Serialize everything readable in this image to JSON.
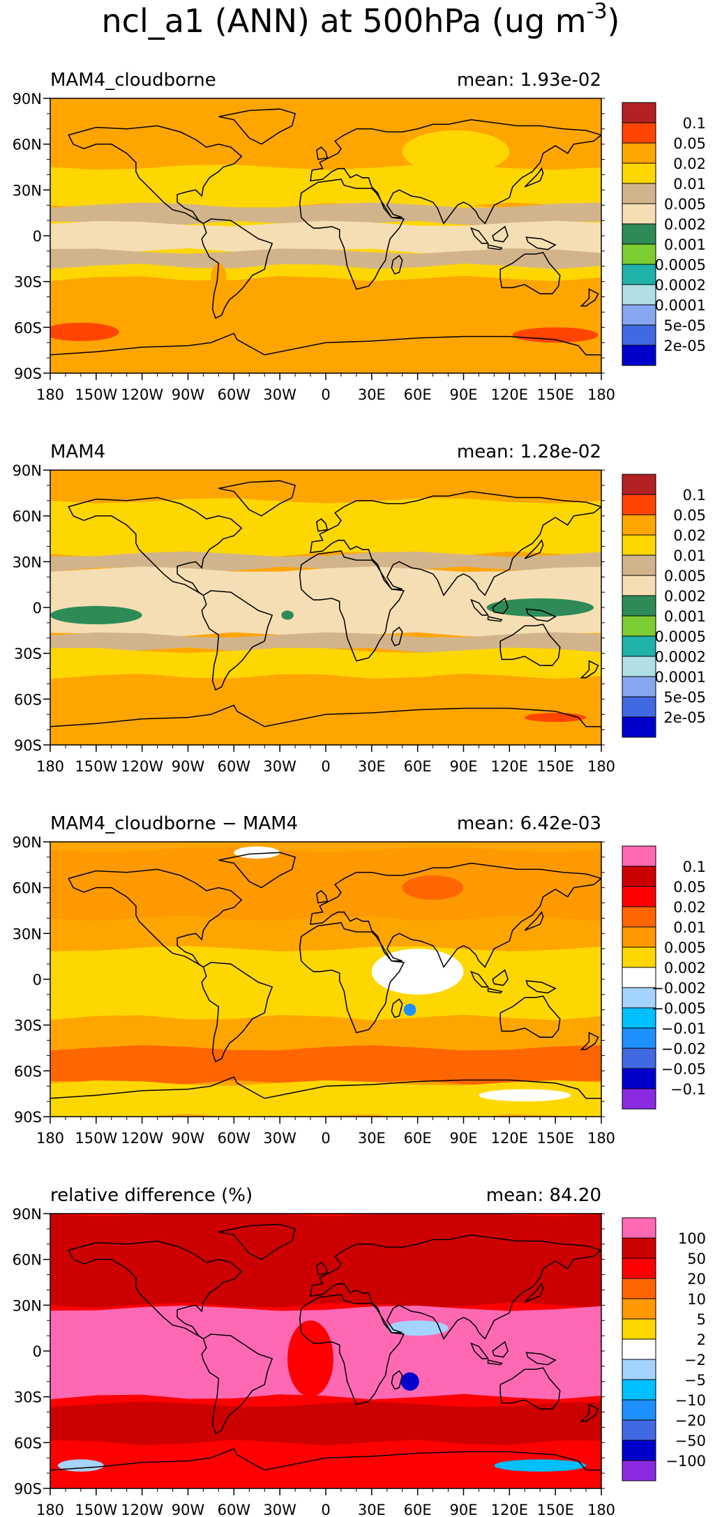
{
  "title": "ncl_a1 (ANN) at 500hPa (ug m",
  "title_sup": "-3",
  "title_close": ")",
  "lat_labels": [
    "90N",
    "60N",
    "30N",
    "0",
    "30S",
    "60S",
    "90S"
  ],
  "lon_labels": [
    "180",
    "150W",
    "120W",
    "90W",
    "60W",
    "30W",
    "0",
    "30E",
    "60E",
    "90E",
    "120E",
    "150E",
    "180"
  ],
  "panels": [
    {
      "id": "mam4-cloudborne",
      "label": "MAM4_cloudborne",
      "mean": "mean: 1.93e-02",
      "colorbar": {
        "labels": [
          "0.1",
          "0.05",
          "0.02",
          "0.01",
          "0.005",
          "0.002",
          "0.001",
          "0.0005",
          "0.0002",
          "0.0001",
          "5e-05",
          "2e-05"
        ],
        "colors": [
          "#b22222",
          "#ff4500",
          "#ffa500",
          "#ffd700",
          "#d2b48c",
          "#f5deb3",
          "#2e8b57",
          "#7ccd32",
          "#20b2aa",
          "#b0e0e6",
          "#87a6f0",
          "#4169e1",
          "#0000cd"
        ]
      },
      "field": {
        "background": "#ffa500",
        "bands": [
          {
            "lat": [
              45,
              20
            ],
            "color": "#ffd700"
          },
          {
            "lat": [
              20,
              -28
            ],
            "color": "#ffd700"
          },
          {
            "lat": [
              20,
              8
            ],
            "color": "#d2b48c"
          },
          {
            "lat": [
              8,
              -10
            ],
            "color": "#f5deb3"
          },
          {
            "lat": [
              -10,
              -20
            ],
            "color": "#d2b48c"
          }
        ],
        "blobs": [
          {
            "lon": 85,
            "lat": 55,
            "rx": 35,
            "ry": 14,
            "color": "#ffd700"
          },
          {
            "lon": -160,
            "lat": -63,
            "rx": 25,
            "ry": 6,
            "color": "#ff4500"
          },
          {
            "lon": 150,
            "lat": -65,
            "rx": 28,
            "ry": 5,
            "color": "#ff4500"
          },
          {
            "lon": -70,
            "lat": -28,
            "rx": 5,
            "ry": 10,
            "color": "#ffa500"
          }
        ]
      }
    },
    {
      "id": "mam4",
      "label": "MAM4",
      "mean": "mean: 1.28e-02",
      "colorbar": {
        "labels": [
          "0.1",
          "0.05",
          "0.02",
          "0.01",
          "0.005",
          "0.002",
          "0.001",
          "0.0005",
          "0.0002",
          "0.0001",
          "5e-05",
          "2e-05"
        ],
        "colors": [
          "#b22222",
          "#ff4500",
          "#ffa500",
          "#ffd700",
          "#d2b48c",
          "#f5deb3",
          "#2e8b57",
          "#7ccd32",
          "#20b2aa",
          "#b0e0e6",
          "#87a6f0",
          "#4169e1",
          "#0000cd"
        ]
      },
      "field": {
        "background": "#ffa500",
        "bands": [
          {
            "lat": [
              70,
              35
            ],
            "color": "#ffd700"
          },
          {
            "lat": [
              35,
              25
            ],
            "color": "#d2b48c"
          },
          {
            "lat": [
              25,
              -18
            ],
            "color": "#f5deb3"
          },
          {
            "lat": [
              -18,
              -28
            ],
            "color": "#d2b48c"
          },
          {
            "lat": [
              -28,
              -45
            ],
            "color": "#ffd700"
          }
        ],
        "blobs": [
          {
            "lon": -150,
            "lat": -5,
            "rx": 30,
            "ry": 6,
            "color": "#2e8b57"
          },
          {
            "lon": 140,
            "lat": 0,
            "rx": 35,
            "ry": 6,
            "color": "#2e8b57"
          },
          {
            "lon": 150,
            "lat": -72,
            "rx": 20,
            "ry": 3,
            "color": "#ff4500"
          },
          {
            "lon": -25,
            "lat": -5,
            "rx": 4,
            "ry": 3,
            "color": "#2e8b57"
          }
        ]
      }
    },
    {
      "id": "difference",
      "label": "MAM4_cloudborne − MAM4",
      "mean": "mean: 6.42e-03",
      "colorbar": {
        "labels": [
          "0.1",
          "0.05",
          "0.02",
          "0.01",
          "0.005",
          "0.002",
          "−0.002",
          "−0.005",
          "−0.01",
          "−0.02",
          "−0.05",
          "−0.1"
        ],
        "colors": [
          "#ff69b4",
          "#cd0000",
          "#ff0000",
          "#ff6600",
          "#ff9900",
          "#ffd700",
          "#ffffff",
          "#a4d3ff",
          "#00bfff",
          "#1e90ff",
          "#4169e1",
          "#0000cd",
          "#8a2be2"
        ]
      },
      "field": {
        "background": "#ffa500",
        "bands": [
          {
            "lat": [
              85,
              40
            ],
            "color": "#ff9900"
          },
          {
            "lat": [
              20,
              -25
            ],
            "color": "#ffd700"
          },
          {
            "lat": [
              -45,
              -68
            ],
            "color": "#ff6600"
          },
          {
            "lat": [
              -68,
              -90
            ],
            "color": "#ffd700"
          }
        ],
        "blobs": [
          {
            "lon": 60,
            "lat": 5,
            "rx": 30,
            "ry": 15,
            "color": "#ffffff"
          },
          {
            "lon": 55,
            "lat": -20,
            "rx": 4,
            "ry": 4,
            "color": "#1e90ff"
          },
          {
            "lon": 130,
            "lat": -76,
            "rx": 30,
            "ry": 4,
            "color": "#ffffff"
          },
          {
            "lon": 70,
            "lat": 60,
            "rx": 20,
            "ry": 8,
            "color": "#ff6600"
          },
          {
            "lon": -45,
            "lat": 83,
            "rx": 15,
            "ry": 4,
            "color": "#ffffff"
          }
        ]
      }
    },
    {
      "id": "relative-difference",
      "label": "relative difference (%)",
      "mean": "mean: 84.20",
      "colorbar": {
        "labels": [
          "100",
          "50",
          "20",
          "10",
          "5",
          "2",
          "−2",
          "−5",
          "−10",
          "−20",
          "−50",
          "−100"
        ],
        "colors": [
          "#ff69b4",
          "#cd0000",
          "#ff0000",
          "#ff6600",
          "#ff9900",
          "#ffd700",
          "#ffffff",
          "#a4d3ff",
          "#00bfff",
          "#1e90ff",
          "#4169e1",
          "#0000cd",
          "#8a2be2"
        ]
      },
      "field": {
        "background": "#ff0000",
        "bands": [
          {
            "lat": [
              90,
              30
            ],
            "color": "#cd0000"
          },
          {
            "lat": [
              28,
              -30
            ],
            "color": "#ff69b4"
          },
          {
            "lat": [
              -35,
              -60
            ],
            "color": "#cd0000"
          }
        ],
        "blobs": [
          {
            "lon": 55,
            "lat": -20,
            "rx": 6,
            "ry": 6,
            "color": "#0000cd"
          },
          {
            "lon": 60,
            "lat": 15,
            "rx": 20,
            "ry": 5,
            "color": "#a4d3ff"
          },
          {
            "lon": 140,
            "lat": -75,
            "rx": 30,
            "ry": 4,
            "color": "#00bfff"
          },
          {
            "lon": -160,
            "lat": -75,
            "rx": 15,
            "ry": 4,
            "color": "#a4d3ff"
          },
          {
            "lon": -10,
            "lat": -5,
            "rx": 15,
            "ry": 25,
            "color": "#ff0000"
          }
        ]
      }
    }
  ]
}
